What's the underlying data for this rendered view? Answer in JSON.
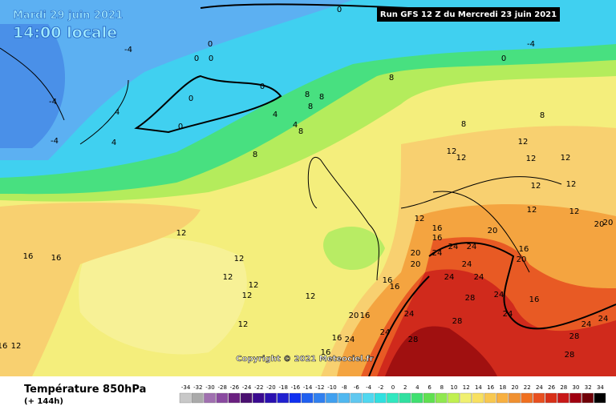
{
  "header": {
    "date": "Mardi 29 juin 2021",
    "time": "14:00 locale",
    "run": "Run GFS 12 Z du Mercredi 23 juin 2021"
  },
  "copyright": "Copyright © 2021 Meteociel.fr",
  "legend": {
    "title": "Température 850hPa",
    "subtitle": "(+ 144h)",
    "values": [
      -34,
      -32,
      -30,
      -28,
      -26,
      -24,
      -22,
      -20,
      -18,
      -16,
      -14,
      -12,
      -10,
      -8,
      -6,
      -4,
      -2,
      0,
      2,
      4,
      6,
      8,
      10,
      12,
      14,
      16,
      18,
      20,
      22,
      24,
      26,
      28,
      30,
      32,
      34
    ],
    "colors": [
      "#c8c8c8",
      "#aaaaaa",
      "#a070b0",
      "#8a4aa0",
      "#6a2080",
      "#4a1070",
      "#3a0a90",
      "#2a10b0",
      "#2020d0",
      "#1030f0",
      "#2060f0",
      "#3080f0",
      "#40a0f0",
      "#50b8f0",
      "#60c8f0",
      "#50d8f0",
      "#30e0e0",
      "#30e8c0",
      "#30e0a0",
      "#40e070",
      "#60e050",
      "#90e850",
      "#c0f050",
      "#f0f070",
      "#f8e060",
      "#f8c850",
      "#f8b040",
      "#f09030",
      "#f07020",
      "#e85020",
      "#d83018",
      "#c81818",
      "#a00010",
      "#700008",
      "#000000"
    ]
  },
  "map": {
    "contour_labels": [
      -4,
      0,
      0,
      0,
      0,
      0,
      -4,
      -4,
      -4,
      4,
      4,
      0,
      0,
      0,
      4,
      4,
      8,
      8,
      8,
      8,
      8,
      8,
      8,
      8,
      12,
      12,
      12,
      12,
      12,
      12,
      12,
      12,
      12,
      12,
      12,
      12,
      12,
      12,
      12,
      12,
      12,
      12,
      16,
      16,
      16,
      16,
      16,
      16,
      16,
      16,
      16,
      16,
      16,
      16,
      20,
      20,
      20,
      20,
      20,
      20,
      20,
      24,
      24,
      24,
      24,
      24,
      24,
      24,
      24,
      24,
      24,
      24,
      24,
      24,
      28,
      28,
      28,
      28,
      28
    ]
  }
}
